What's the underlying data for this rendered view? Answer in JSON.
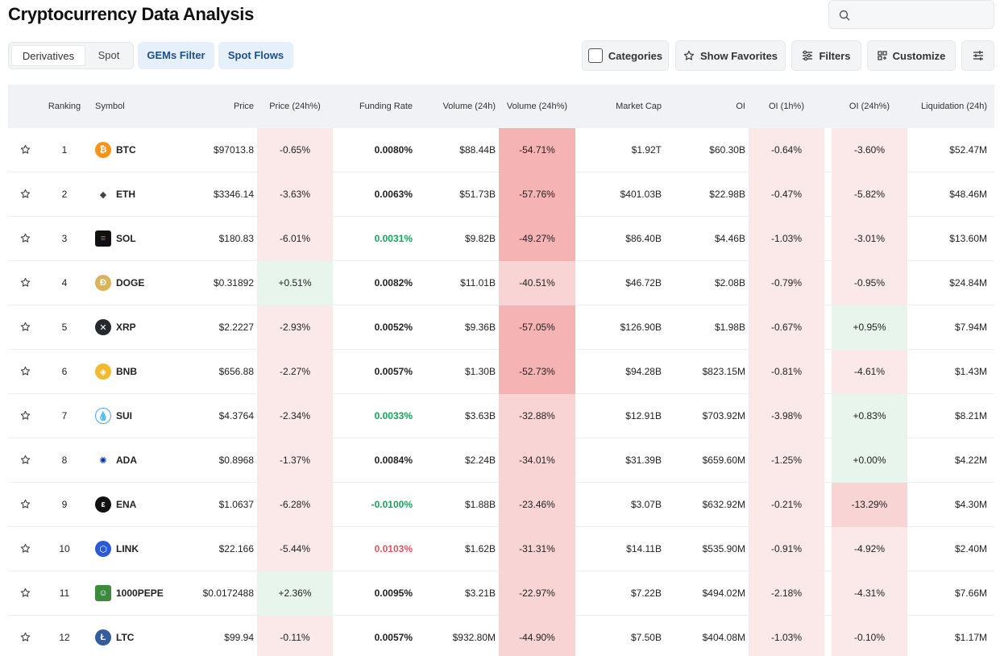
{
  "page": {
    "title": "Cryptocurrency Data Analysis"
  },
  "search": {
    "placeholder": ""
  },
  "tabs": {
    "derivatives": "Derivatives",
    "spot": "Spot"
  },
  "pills": {
    "gems": "GEMs Filter",
    "spot_flows": "Spot Flows"
  },
  "toolbar": {
    "categories": "Categories",
    "favorites": "Show Favorites",
    "filters": "Filters",
    "customize": "Customize"
  },
  "columns": {
    "ranking": "Ranking",
    "symbol": "Symbol",
    "price": "Price",
    "price_change": "Price (24h%)",
    "funding": "Funding Rate",
    "volume": "Volume (24h)",
    "volume_change": "Volume (24h%)",
    "market_cap": "Market Cap",
    "oi": "OI",
    "oi_1h": "OI (1h%)",
    "oi_24h": "OI (24h%)",
    "liquidation": "Liquidation (24h)"
  },
  "colors": {
    "neg_light": "#fbe9e9",
    "neg_mid": "#f9d4d4",
    "neg_strong": "#f6b3b3",
    "pos_light": "#e8f5ec",
    "funding_green": "#1aa35a",
    "funding_red": "#e05561"
  },
  "rows": [
    {
      "rank": "1",
      "symbol": "BTC",
      "icon": "bitcoin-icon",
      "price": "$97013.8",
      "price_change": "-0.65%",
      "funding": "0.0080%",
      "volume": "$88.44B",
      "volume_change": "-54.71%",
      "market_cap": "$1.92T",
      "oi": "$60.30B",
      "oi_1h": "-0.64%",
      "oi_24h": "-3.60%",
      "liquidation": "$52.47M"
    },
    {
      "rank": "2",
      "symbol": "ETH",
      "icon": "ethereum-icon",
      "price": "$3346.14",
      "price_change": "-3.63%",
      "funding": "0.0063%",
      "volume": "$51.73B",
      "volume_change": "-57.76%",
      "market_cap": "$401.03B",
      "oi": "$22.98B",
      "oi_1h": "-0.47%",
      "oi_24h": "-5.82%",
      "liquidation": "$48.46M"
    },
    {
      "rank": "3",
      "symbol": "SOL",
      "icon": "solana-icon",
      "price": "$180.83",
      "price_change": "-6.01%",
      "funding": "0.0031%",
      "volume": "$9.82B",
      "volume_change": "-49.27%",
      "market_cap": "$86.40B",
      "oi": "$4.46B",
      "oi_1h": "-1.03%",
      "oi_24h": "-3.01%",
      "liquidation": "$13.60M"
    },
    {
      "rank": "4",
      "symbol": "DOGE",
      "icon": "dogecoin-icon",
      "price": "$0.31892",
      "price_change": "+0.51%",
      "funding": "0.0082%",
      "volume": "$11.01B",
      "volume_change": "-40.51%",
      "market_cap": "$46.72B",
      "oi": "$2.08B",
      "oi_1h": "-0.79%",
      "oi_24h": "-0.95%",
      "liquidation": "$24.84M"
    },
    {
      "rank": "5",
      "symbol": "XRP",
      "icon": "xrp-icon",
      "price": "$2.2227",
      "price_change": "-2.93%",
      "funding": "0.0052%",
      "volume": "$9.36B",
      "volume_change": "-57.05%",
      "market_cap": "$126.90B",
      "oi": "$1.98B",
      "oi_1h": "-0.67%",
      "oi_24h": "+0.95%",
      "liquidation": "$7.94M"
    },
    {
      "rank": "6",
      "symbol": "BNB",
      "icon": "bnb-icon",
      "price": "$656.88",
      "price_change": "-2.27%",
      "funding": "0.0057%",
      "volume": "$1.30B",
      "volume_change": "-52.73%",
      "market_cap": "$94.28B",
      "oi": "$823.15M",
      "oi_1h": "-0.81%",
      "oi_24h": "-4.61%",
      "liquidation": "$1.43M"
    },
    {
      "rank": "7",
      "symbol": "SUI",
      "icon": "sui-icon",
      "price": "$4.3764",
      "price_change": "-2.34%",
      "funding": "0.0033%",
      "volume": "$3.63B",
      "volume_change": "-32.88%",
      "market_cap": "$12.91B",
      "oi": "$703.92M",
      "oi_1h": "-3.98%",
      "oi_24h": "+0.83%",
      "liquidation": "$8.21M"
    },
    {
      "rank": "8",
      "symbol": "ADA",
      "icon": "cardano-icon",
      "price": "$0.8968",
      "price_change": "-1.37%",
      "funding": "0.0084%",
      "volume": "$2.24B",
      "volume_change": "-34.01%",
      "market_cap": "$31.39B",
      "oi": "$659.60M",
      "oi_1h": "-1.25%",
      "oi_24h": "+0.00%",
      "liquidation": "$4.22M"
    },
    {
      "rank": "9",
      "symbol": "ENA",
      "icon": "ethena-icon",
      "price": "$1.0637",
      "price_change": "-6.28%",
      "funding": "-0.0100%",
      "volume": "$1.88B",
      "volume_change": "-23.46%",
      "market_cap": "$3.07B",
      "oi": "$632.92M",
      "oi_1h": "-0.21%",
      "oi_24h": "-13.29%",
      "liquidation": "$4.30M"
    },
    {
      "rank": "10",
      "symbol": "LINK",
      "icon": "chainlink-icon",
      "price": "$22.166",
      "price_change": "-5.44%",
      "funding": "0.0103%",
      "volume": "$1.62B",
      "volume_change": "-31.31%",
      "market_cap": "$14.11B",
      "oi": "$535.90M",
      "oi_1h": "-0.91%",
      "oi_24h": "-4.92%",
      "liquidation": "$2.40M"
    },
    {
      "rank": "11",
      "symbol": "1000PEPE",
      "icon": "pepe-icon",
      "price": "$0.0172488",
      "price_change": "+2.36%",
      "funding": "0.0095%",
      "volume": "$3.21B",
      "volume_change": "-22.97%",
      "market_cap": "$7.22B",
      "oi": "$494.02M",
      "oi_1h": "-2.18%",
      "oi_24h": "-4.31%",
      "liquidation": "$7.66M"
    },
    {
      "rank": "12",
      "symbol": "LTC",
      "icon": "litecoin-icon",
      "price": "$99.94",
      "price_change": "-0.11%",
      "funding": "0.0057%",
      "volume": "$932.80M",
      "volume_change": "-44.90%",
      "market_cap": "$7.50B",
      "oi": "$404.08M",
      "oi_1h": "-1.03%",
      "oi_24h": "-0.10%",
      "liquidation": "$1.17M"
    }
  ]
}
